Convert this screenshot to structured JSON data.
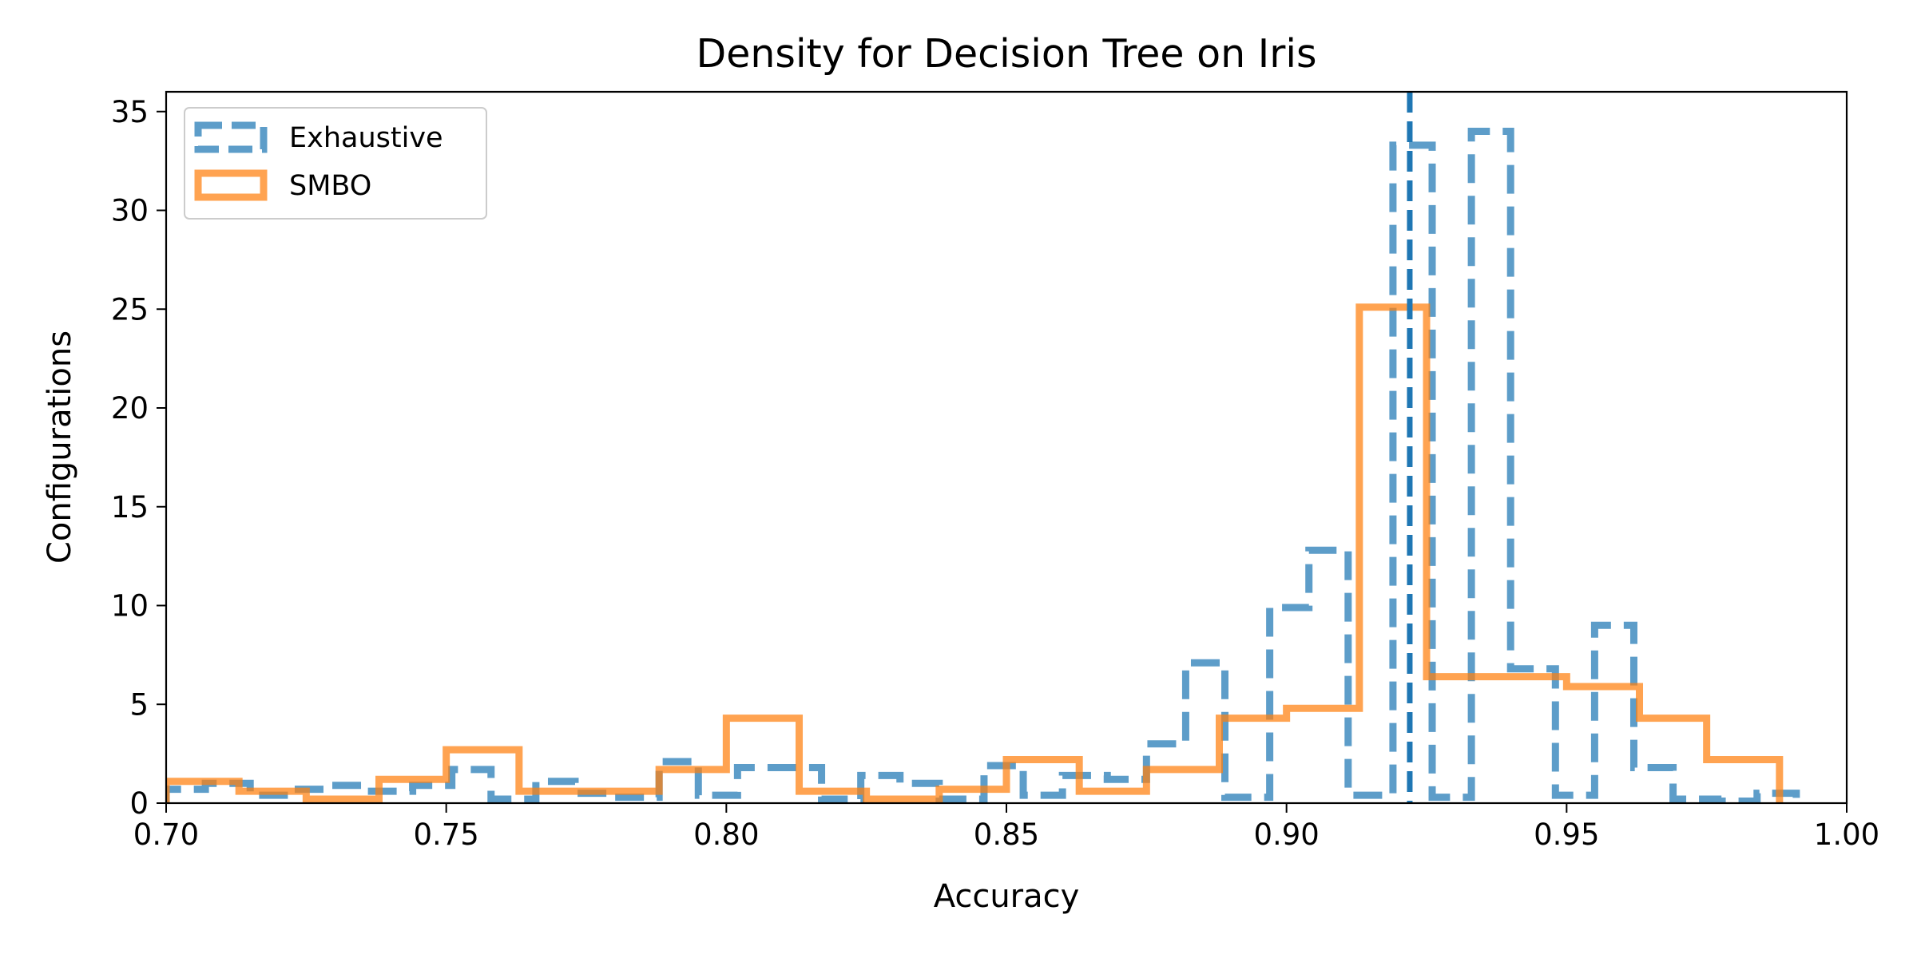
{
  "chart_data": {
    "type": "histogram",
    "title": "Density for Decision Tree on Iris",
    "xlabel": "Accuracy",
    "ylabel": "Configurations",
    "xlim": [
      0.7,
      1.0
    ],
    "ylim": [
      0,
      36
    ],
    "x_ticks": [
      "0.70",
      "0.75",
      "0.80",
      "0.85",
      "0.90",
      "0.95",
      "1.00"
    ],
    "y_ticks": [
      "0",
      "5",
      "10",
      "15",
      "20",
      "25",
      "30",
      "35"
    ],
    "legend_position": "top-left",
    "grid": false,
    "series": [
      {
        "name": "Exhaustive",
        "style": "dashed-step",
        "color": "#1f77b4",
        "edges": [
          0.7,
          0.707,
          0.715,
          0.722,
          0.729,
          0.736,
          0.744,
          0.751,
          0.758,
          0.766,
          0.773,
          0.78,
          0.788,
          0.795,
          0.802,
          0.809,
          0.817,
          0.824,
          0.831,
          0.838,
          0.846,
          0.853,
          0.86,
          0.868,
          0.875,
          0.882,
          0.889,
          0.897,
          0.904,
          0.911,
          0.919,
          0.926,
          0.933,
          0.94,
          0.948,
          0.955,
          0.962,
          0.969,
          0.977,
          0.984,
          0.991
        ],
        "values": [
          0.7,
          1.0,
          0.4,
          0.7,
          0.9,
          0.6,
          0.9,
          1.7,
          0.2,
          1.1,
          0.5,
          0.3,
          2.1,
          0.4,
          1.8,
          1.8,
          0.2,
          1.4,
          1.0,
          0.2,
          1.9,
          0.4,
          1.4,
          1.2,
          3.0,
          7.1,
          0.3,
          9.9,
          12.8,
          0.4,
          33.3,
          0.3,
          34.0,
          6.8,
          0.4,
          9.0,
          1.8,
          0.2,
          0.1,
          0.5
        ]
      },
      {
        "name": "SMBO",
        "style": "solid-step",
        "color": "#ff7f0e",
        "edges": [
          0.7,
          0.713,
          0.725,
          0.738,
          0.75,
          0.763,
          0.775,
          0.788,
          0.8,
          0.813,
          0.825,
          0.838,
          0.85,
          0.863,
          0.875,
          0.888,
          0.9,
          0.913,
          0.925,
          0.938,
          0.95,
          0.963,
          0.975,
          0.988
        ],
        "values": [
          1.1,
          0.6,
          0.2,
          1.2,
          2.7,
          0.6,
          0.6,
          1.7,
          4.3,
          0.6,
          0.2,
          0.7,
          2.2,
          0.6,
          1.7,
          4.3,
          4.8,
          25.1,
          6.4,
          6.4,
          5.9,
          4.3,
          2.2
        ]
      }
    ],
    "reference_line": {
      "x": 0.922,
      "color": "#1f77b4",
      "style": "dashed"
    }
  }
}
